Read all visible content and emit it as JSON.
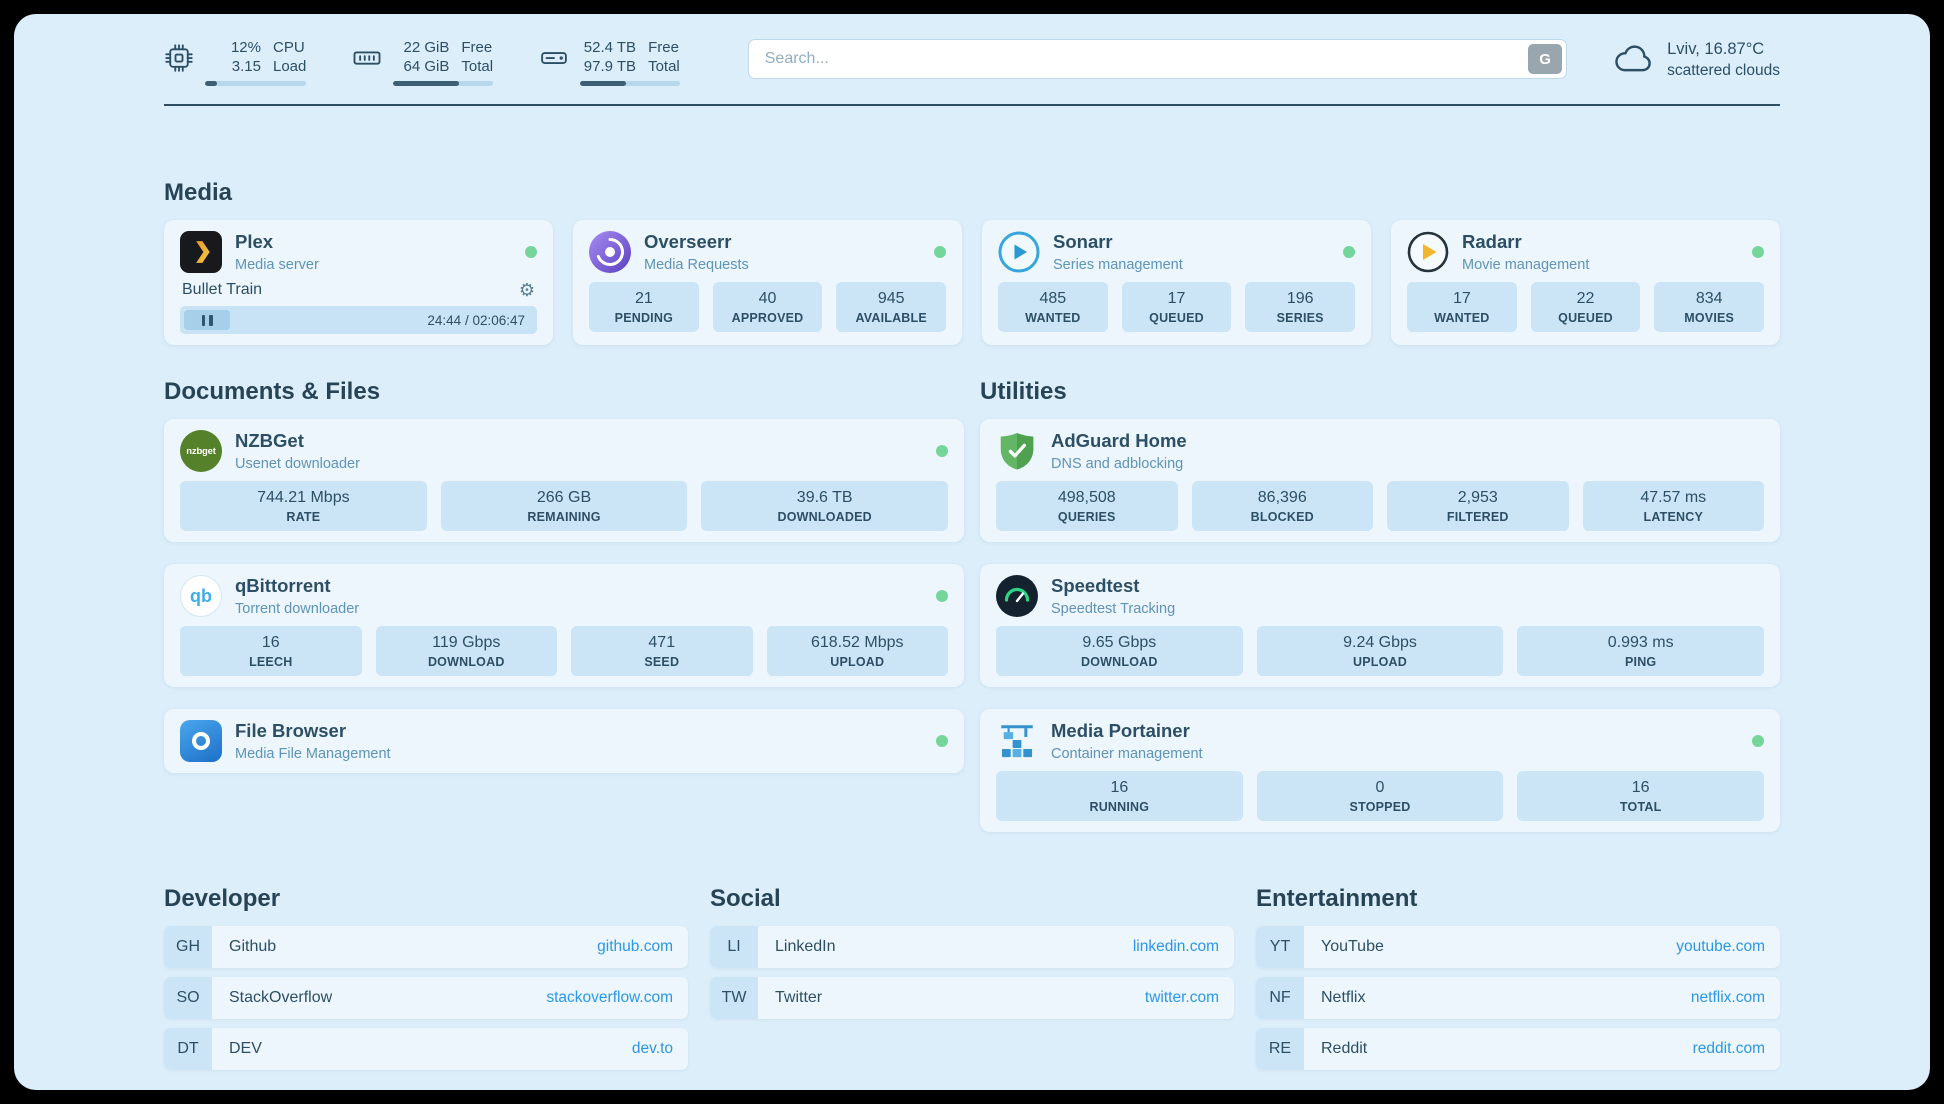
{
  "colors": {
    "status_green": "#74d69b",
    "link_blue": "#2b97e5",
    "text_dark": "#2d4f66",
    "text_muted": "#5f93b8",
    "bar_fill": "#3c5f74",
    "stat_bg": "#cbe5f6",
    "page_bg": "#dceefa"
  },
  "topbar": {
    "cpu": {
      "value_top": "12%",
      "label_top": "CPU",
      "value_bottom": "3.15",
      "label_bottom": "Load",
      "percent": 12
    },
    "memory": {
      "value_top": "22 GiB",
      "label_top": "Free",
      "value_bottom": "64 GiB",
      "label_bottom": "Total",
      "percent": 66
    },
    "disk": {
      "value_top": "52.4 TB",
      "label_top": "Free",
      "value_bottom": "97.9 TB",
      "label_bottom": "Total",
      "percent": 46
    },
    "search": {
      "placeholder": "Search...",
      "engine_button": "G"
    },
    "weather": {
      "location": "Lviv, 16.87°C",
      "condition": "scattered clouds"
    }
  },
  "media": {
    "title": "Media",
    "plex": {
      "name": "Plex",
      "description": "Media server",
      "now_playing": {
        "title": "Bullet Train",
        "time": "24:44 / 02:06:47"
      }
    },
    "overseerr": {
      "name": "Overseerr",
      "description": "Media Requests",
      "stats": [
        {
          "value": "21",
          "label": "PENDING"
        },
        {
          "value": "40",
          "label": "APPROVED"
        },
        {
          "value": "945",
          "label": "AVAILABLE"
        }
      ]
    },
    "sonarr": {
      "name": "Sonarr",
      "description": "Series management",
      "stats": [
        {
          "value": "485",
          "label": "WANTED"
        },
        {
          "value": "17",
          "label": "QUEUED"
        },
        {
          "value": "196",
          "label": "SERIES"
        }
      ]
    },
    "radarr": {
      "name": "Radarr",
      "description": "Movie management",
      "stats": [
        {
          "value": "17",
          "label": "WANTED"
        },
        {
          "value": "22",
          "label": "QUEUED"
        },
        {
          "value": "834",
          "label": "MOVIES"
        }
      ]
    }
  },
  "documents": {
    "title": "Documents & Files",
    "nzbget": {
      "name": "NZBGet",
      "description": "Usenet downloader",
      "icon_label": "nzbget",
      "stats": [
        {
          "value": "744.21 Mbps",
          "label": "RATE"
        },
        {
          "value": "266 GB",
          "label": "REMAINING"
        },
        {
          "value": "39.6 TB",
          "label": "DOWNLOADED"
        }
      ]
    },
    "qbittorrent": {
      "name": "qBittorrent",
      "description": "Torrent downloader",
      "icon_label": "qb",
      "stats": [
        {
          "value": "16",
          "label": "LEECH"
        },
        {
          "value": "119 Gbps",
          "label": "DOWNLOAD"
        },
        {
          "value": "471",
          "label": "SEED"
        },
        {
          "value": "618.52 Mbps",
          "label": "UPLOAD"
        }
      ]
    },
    "filebrowser": {
      "name": "File Browser",
      "description": "Media File Management"
    }
  },
  "utilities": {
    "title": "Utilities",
    "adguard": {
      "name": "AdGuard Home",
      "description": "DNS and adblocking",
      "stats": [
        {
          "value": "498,508",
          "label": "QUERIES"
        },
        {
          "value": "86,396",
          "label": "BLOCKED"
        },
        {
          "value": "2,953",
          "label": "FILTERED"
        },
        {
          "value": "47.57 ms",
          "label": "LATENCY"
        }
      ]
    },
    "speedtest": {
      "name": "Speedtest",
      "description": "Speedtest Tracking",
      "stats": [
        {
          "value": "9.65 Gbps",
          "label": "DOWNLOAD"
        },
        {
          "value": "9.24 Gbps",
          "label": "UPLOAD"
        },
        {
          "value": "0.993 ms",
          "label": "PING"
        }
      ]
    },
    "portainer": {
      "name": "Media Portainer",
      "description": "Container management",
      "stats": [
        {
          "value": "16",
          "label": "RUNNING"
        },
        {
          "value": "0",
          "label": "STOPPED"
        },
        {
          "value": "16",
          "label": "TOTAL"
        }
      ]
    }
  },
  "bookmarks": {
    "developer": {
      "title": "Developer",
      "items": [
        {
          "abbr": "GH",
          "name": "Github",
          "url": "github.com"
        },
        {
          "abbr": "SO",
          "name": "StackOverflow",
          "url": "stackoverflow.com"
        },
        {
          "abbr": "DT",
          "name": "DEV",
          "url": "dev.to"
        }
      ]
    },
    "social": {
      "title": "Social",
      "items": [
        {
          "abbr": "LI",
          "name": "LinkedIn",
          "url": "linkedin.com"
        },
        {
          "abbr": "TW",
          "name": "Twitter",
          "url": "twitter.com"
        }
      ]
    },
    "entertainment": {
      "title": "Entertainment",
      "items": [
        {
          "abbr": "YT",
          "name": "YouTube",
          "url": "youtube.com"
        },
        {
          "abbr": "NF",
          "name": "Netflix",
          "url": "netflix.com"
        },
        {
          "abbr": "RE",
          "name": "Reddit",
          "url": "reddit.com"
        }
      ]
    }
  }
}
